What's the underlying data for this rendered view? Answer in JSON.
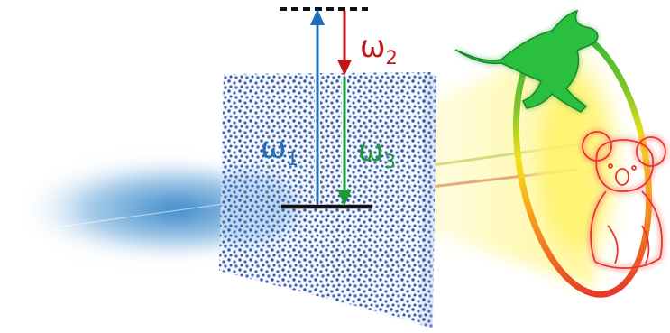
{
  "labels": {
    "omega1": {
      "symbol": "ω",
      "subscript": "1"
    },
    "omega2": {
      "symbol": "ω",
      "subscript": "2"
    },
    "omega3": {
      "symbol": "ω",
      "subscript": "3"
    }
  },
  "colors": {
    "omega1": "#1f6fb8",
    "omega2": "#c0141b",
    "omega3": "#1a9a3a",
    "pump_beam": "#2b7fc4",
    "dots": "#2f57a8",
    "kangaroo": "#25b53a",
    "koala": "#e8433c",
    "ring": [
      "#e53a2b",
      "#f7a31a",
      "#f4e21a",
      "#7cc42b",
      "#25b53a"
    ]
  },
  "icons": {
    "creature_1": "kangaroo-icon",
    "creature_2": "koala-icon",
    "surface": "metasurface-icon"
  }
}
